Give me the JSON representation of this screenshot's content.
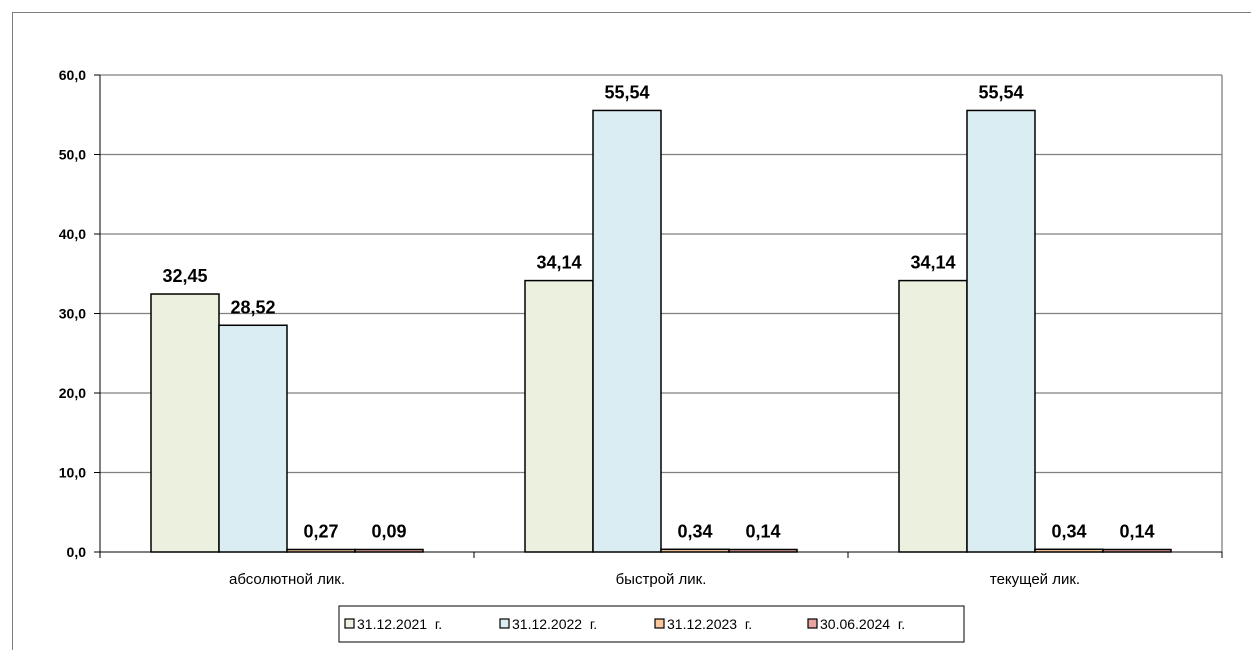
{
  "chart_data": {
    "type": "bar",
    "categories": [
      "абсолютной лик.",
      "быстрой лик.",
      "текущей лик."
    ],
    "series": [
      {
        "name": "31.12.2021  г.",
        "values": [
          32.45,
          34.14,
          34.14
        ],
        "labels": [
          "32,45",
          "34,14",
          "34,14"
        ],
        "color": "#EBF0DF"
      },
      {
        "name": "31.12.2022  г.",
        "values": [
          28.52,
          55.54,
          55.54
        ],
        "labels": [
          "28,52",
          "55,54",
          "55,54"
        ],
        "color": "#DAEDF3"
      },
      {
        "name": "31.12.2023  г.",
        "values": [
          0.27,
          0.34,
          0.34
        ],
        "labels": [
          "0,27",
          "0,34",
          "0,34"
        ],
        "color": "#F9C79A"
      },
      {
        "name": "30.06.2024  г.",
        "values": [
          0.09,
          0.14,
          0.14
        ],
        "labels": [
          "0,09",
          "0,14",
          "0,14"
        ],
        "color": "#E8A5A0"
      }
    ],
    "y_ticks": [
      "0,0",
      "10,0",
      "20,0",
      "30,0",
      "40,0",
      "50,0",
      "60,0"
    ],
    "ylim": [
      0,
      60
    ],
    "grid": true,
    "legend_position": "bottom"
  }
}
